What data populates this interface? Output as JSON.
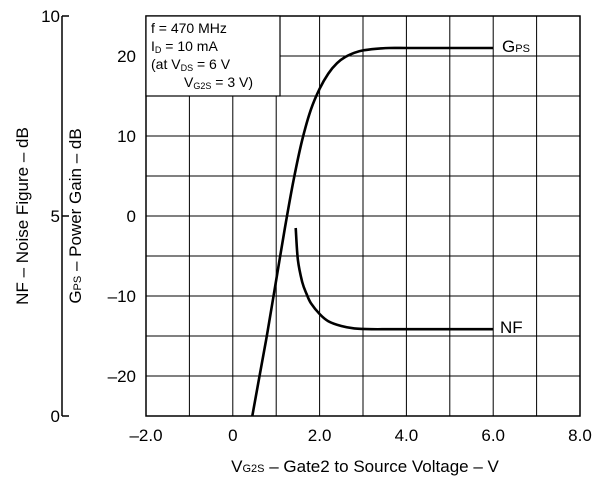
{
  "chart_data": {
    "type": "line",
    "xlabel": {
      "main": "V",
      "sub": "G2S",
      "rest": " – Gate2 to Source Voltage – V"
    },
    "ylabel_gain": {
      "main": "G",
      "sub": "PS",
      "rest": " – Power Gain – dB"
    },
    "ylabel_nf": "NF – Noise Figure – dB",
    "xlim": [
      -2.0,
      8.0
    ],
    "x_ticks": [
      -2.0,
      0,
      2.0,
      4.0,
      6.0,
      8.0
    ],
    "x_tick_labels": [
      "–2.0",
      "0",
      "2.0",
      "4.0",
      "6.0",
      "8.0"
    ],
    "gain_axis": {
      "lim": [
        -25,
        25
      ],
      "ticks": [
        20,
        10,
        0,
        -10,
        -20
      ],
      "tick_labels": [
        "20",
        "10",
        "0",
        "–10",
        "–20"
      ]
    },
    "nf_axis": {
      "lim": [
        0,
        10
      ],
      "ticks": [
        10,
        5,
        0
      ],
      "tick_labels": [
        "10",
        "5",
        "0"
      ]
    },
    "grid": true,
    "conditions": {
      "line1": "f = 470 MHz",
      "line2": {
        "main": "I",
        "sub": "D",
        "rest": " = 10 mA"
      },
      "line3": {
        "pre": "(at V",
        "sub": "DS",
        "rest": " = 6 V"
      },
      "line4": {
        "pre": "V",
        "sub": "G2S",
        "rest": " = 3 V)"
      }
    },
    "series": [
      {
        "name": {
          "main": "G",
          "sub": "PS"
        },
        "axis": "gain",
        "x": [
          0.45,
          0.6,
          0.8,
          1.0,
          1.2,
          1.4,
          1.6,
          1.8,
          2.0,
          2.2,
          2.4,
          2.6,
          2.8,
          3.0,
          3.3,
          3.6,
          4.0,
          4.5,
          5.0,
          5.5,
          6.0
        ],
        "y": [
          -25,
          -20.5,
          -14.5,
          -8,
          -1.5,
          4.5,
          9.5,
          13.3,
          15.9,
          17.8,
          19.1,
          19.9,
          20.4,
          20.7,
          20.9,
          21.0,
          21.0,
          21.0,
          21.0,
          21.0,
          21.0
        ]
      },
      {
        "name": "NF",
        "axis": "nf",
        "x": [
          1.45,
          1.5,
          1.6,
          1.7,
          1.8,
          2.0,
          2.2,
          2.5,
          2.8,
          3.2,
          3.6,
          4.0,
          5.0,
          6.0
        ],
        "y": [
          4.7,
          3.9,
          3.35,
          3.05,
          2.82,
          2.55,
          2.37,
          2.25,
          2.19,
          2.17,
          2.17,
          2.17,
          2.17,
          2.17
        ]
      }
    ]
  }
}
